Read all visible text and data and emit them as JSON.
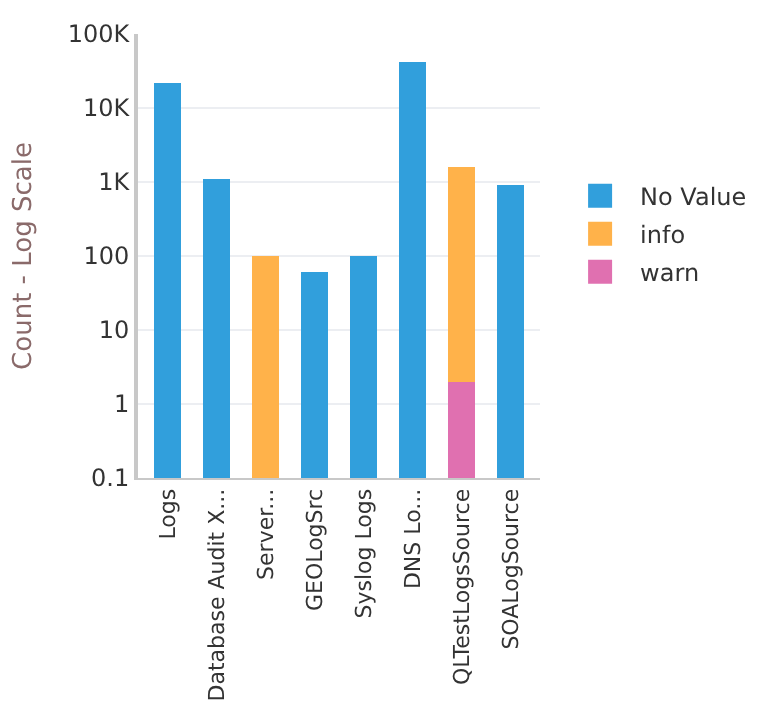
{
  "chart_data": {
    "type": "bar",
    "stacked": true,
    "log": "y",
    "ylabel": "Count - Log Scale",
    "categories": [
      "Logs",
      "Database Audit X...",
      "Server...",
      "GEOLogSrc",
      "Syslog Logs",
      "DNS Lo...",
      "QLTestLogsSource",
      "SOALogSource"
    ],
    "series": [
      {
        "name": "warn",
        "color": "#e070b0",
        "values": [
          null,
          null,
          null,
          null,
          null,
          null,
          2,
          null
        ]
      },
      {
        "name": "info",
        "color": "#ffb24a",
        "values": [
          null,
          null,
          100,
          null,
          null,
          null,
          1600,
          null
        ]
      },
      {
        "name": "No Value",
        "color": "#319fdc",
        "values": [
          22000,
          1100,
          null,
          60,
          100,
          42000,
          null,
          900
        ]
      }
    ],
    "ylim": [
      0.1,
      100000
    ],
    "yticks": [
      0.1,
      1,
      10,
      100,
      {
        "value": 1000,
        "label": "1K"
      },
      {
        "value": 10000,
        "label": "10K"
      },
      {
        "value": 100000,
        "label": "100K"
      }
    ],
    "grid": "y",
    "legend": "right"
  }
}
